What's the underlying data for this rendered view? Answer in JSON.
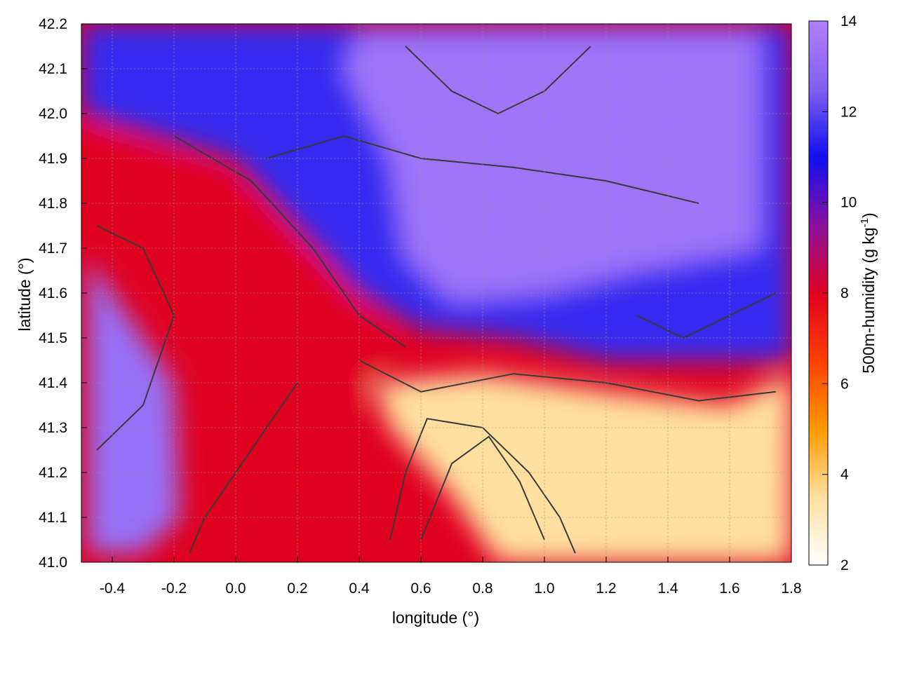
{
  "chart_data": {
    "type": "heatmap",
    "title": "",
    "xlabel": "longitude (°)",
    "ylabel": "latitude (°)",
    "colorbar_label": "500m-humidity (g kg",
    "colorbar_label_sup": "-1",
    "colorbar_label_end": ")",
    "xlim": [
      -0.5,
      1.8
    ],
    "ylim": [
      41.0,
      42.2
    ],
    "clim": [
      2,
      14
    ],
    "grid": true,
    "x_ticks": [
      "-0.4",
      "-0.2",
      "0.0",
      "0.2",
      "0.4",
      "0.6",
      "0.8",
      "1.0",
      "1.2",
      "1.4",
      "1.6",
      "1.8"
    ],
    "y_ticks": [
      "41.0",
      "41.1",
      "41.2",
      "41.3",
      "41.4",
      "41.5",
      "41.6",
      "41.7",
      "41.8",
      "41.9",
      "42.0",
      "42.1",
      "42.2"
    ],
    "c_ticks": [
      "2",
      "4",
      "6",
      "8",
      "10",
      "12",
      "14"
    ],
    "colormap": [
      "#ffffff",
      "#ffe0a0",
      "#ff9a00",
      "#ff4000",
      "#e00020",
      "#8a10a0",
      "#1010f0",
      "#8060f0",
      "#b080ff"
    ],
    "field_regions": [
      {
        "name": "north-plateau",
        "value": 13.5
      },
      {
        "name": "central-band",
        "value": 11.5
      },
      {
        "name": "southwest-lobe",
        "value": 13.2
      },
      {
        "name": "coastal-strip",
        "value": 8.0
      },
      {
        "name": "southeast-dry",
        "value": 3.5
      }
    ],
    "contour_color": "#3a3a3a"
  }
}
